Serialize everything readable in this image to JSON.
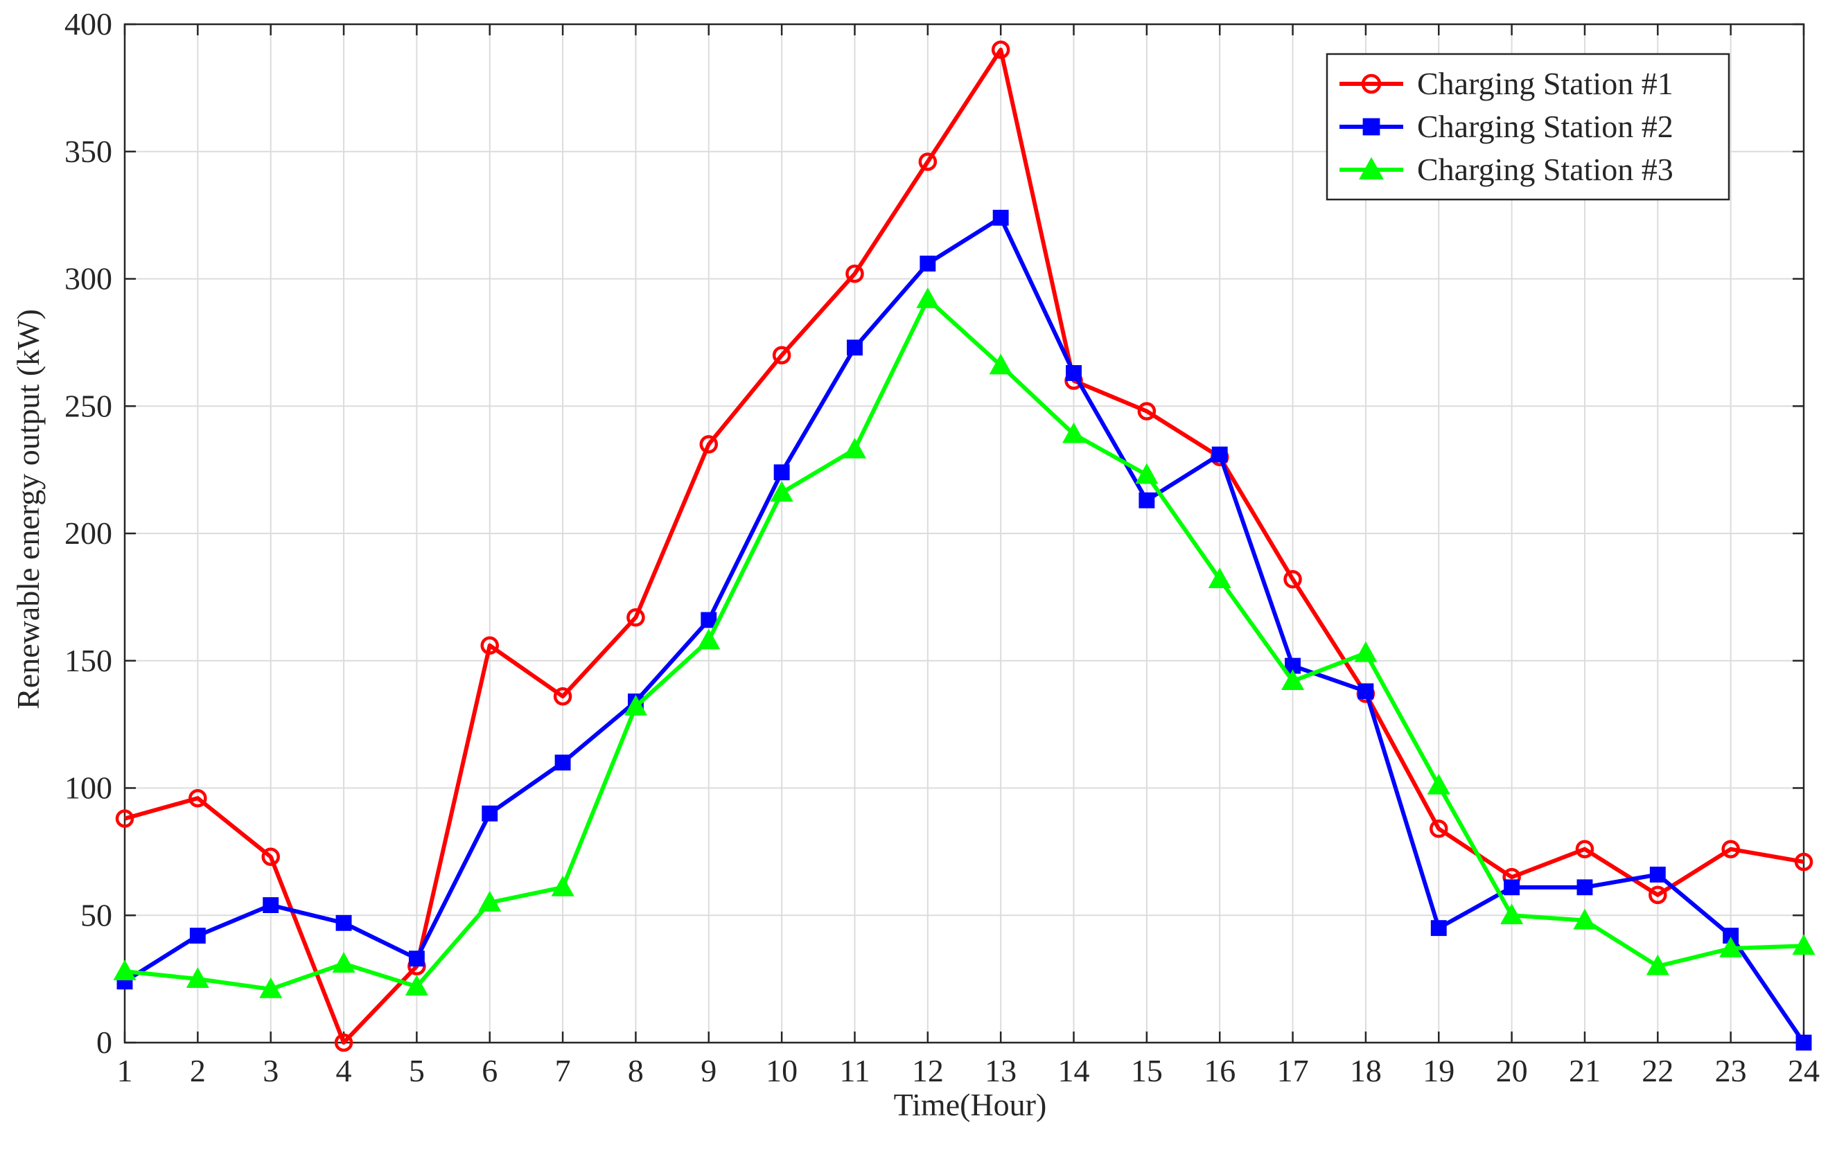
{
  "chart_data": {
    "type": "line",
    "xlabel": "Time(Hour)",
    "ylabel": "Renewable energy output (kW)",
    "x": [
      1,
      2,
      3,
      4,
      5,
      6,
      7,
      8,
      9,
      10,
      11,
      12,
      13,
      14,
      15,
      16,
      17,
      18,
      19,
      20,
      21,
      22,
      23,
      24
    ],
    "xticks": [
      "1",
      "2",
      "3",
      "4",
      "5",
      "6",
      "7",
      "8",
      "9",
      "10",
      "11",
      "12",
      "13",
      "14",
      "15",
      "16",
      "17",
      "18",
      "19",
      "20",
      "21",
      "22",
      "23",
      "24"
    ],
    "yticks": [
      "0",
      "50",
      "100",
      "150",
      "200",
      "250",
      "300",
      "350",
      "400"
    ],
    "xlim": [
      1,
      24
    ],
    "ylim": [
      0,
      400
    ],
    "grid": true,
    "legend_position": "top-right",
    "series": [
      {
        "name": "Charging Station #1",
        "color": "#ff0000",
        "marker": "circle",
        "values": [
          88,
          96,
          73,
          0,
          30,
          156,
          136,
          167,
          235,
          270,
          302,
          346,
          390,
          260,
          248,
          230,
          182,
          137,
          84,
          65,
          76,
          58,
          76,
          71
        ]
      },
      {
        "name": "Charging Station #2",
        "color": "#0000ff",
        "marker": "square",
        "values": [
          24,
          42,
          54,
          47,
          33,
          90,
          110,
          134,
          166,
          224,
          273,
          306,
          324,
          263,
          213,
          231,
          148,
          138,
          45,
          61,
          61,
          66,
          42,
          0
        ]
      },
      {
        "name": "Charging Station #3",
        "color": "#00ff00",
        "marker": "triangle",
        "values": [
          28,
          25,
          21,
          31,
          22,
          55,
          61,
          132,
          158,
          216,
          233,
          292,
          266,
          239,
          223,
          182,
          142,
          153,
          101,
          50,
          48,
          30,
          37,
          38
        ]
      }
    ]
  }
}
